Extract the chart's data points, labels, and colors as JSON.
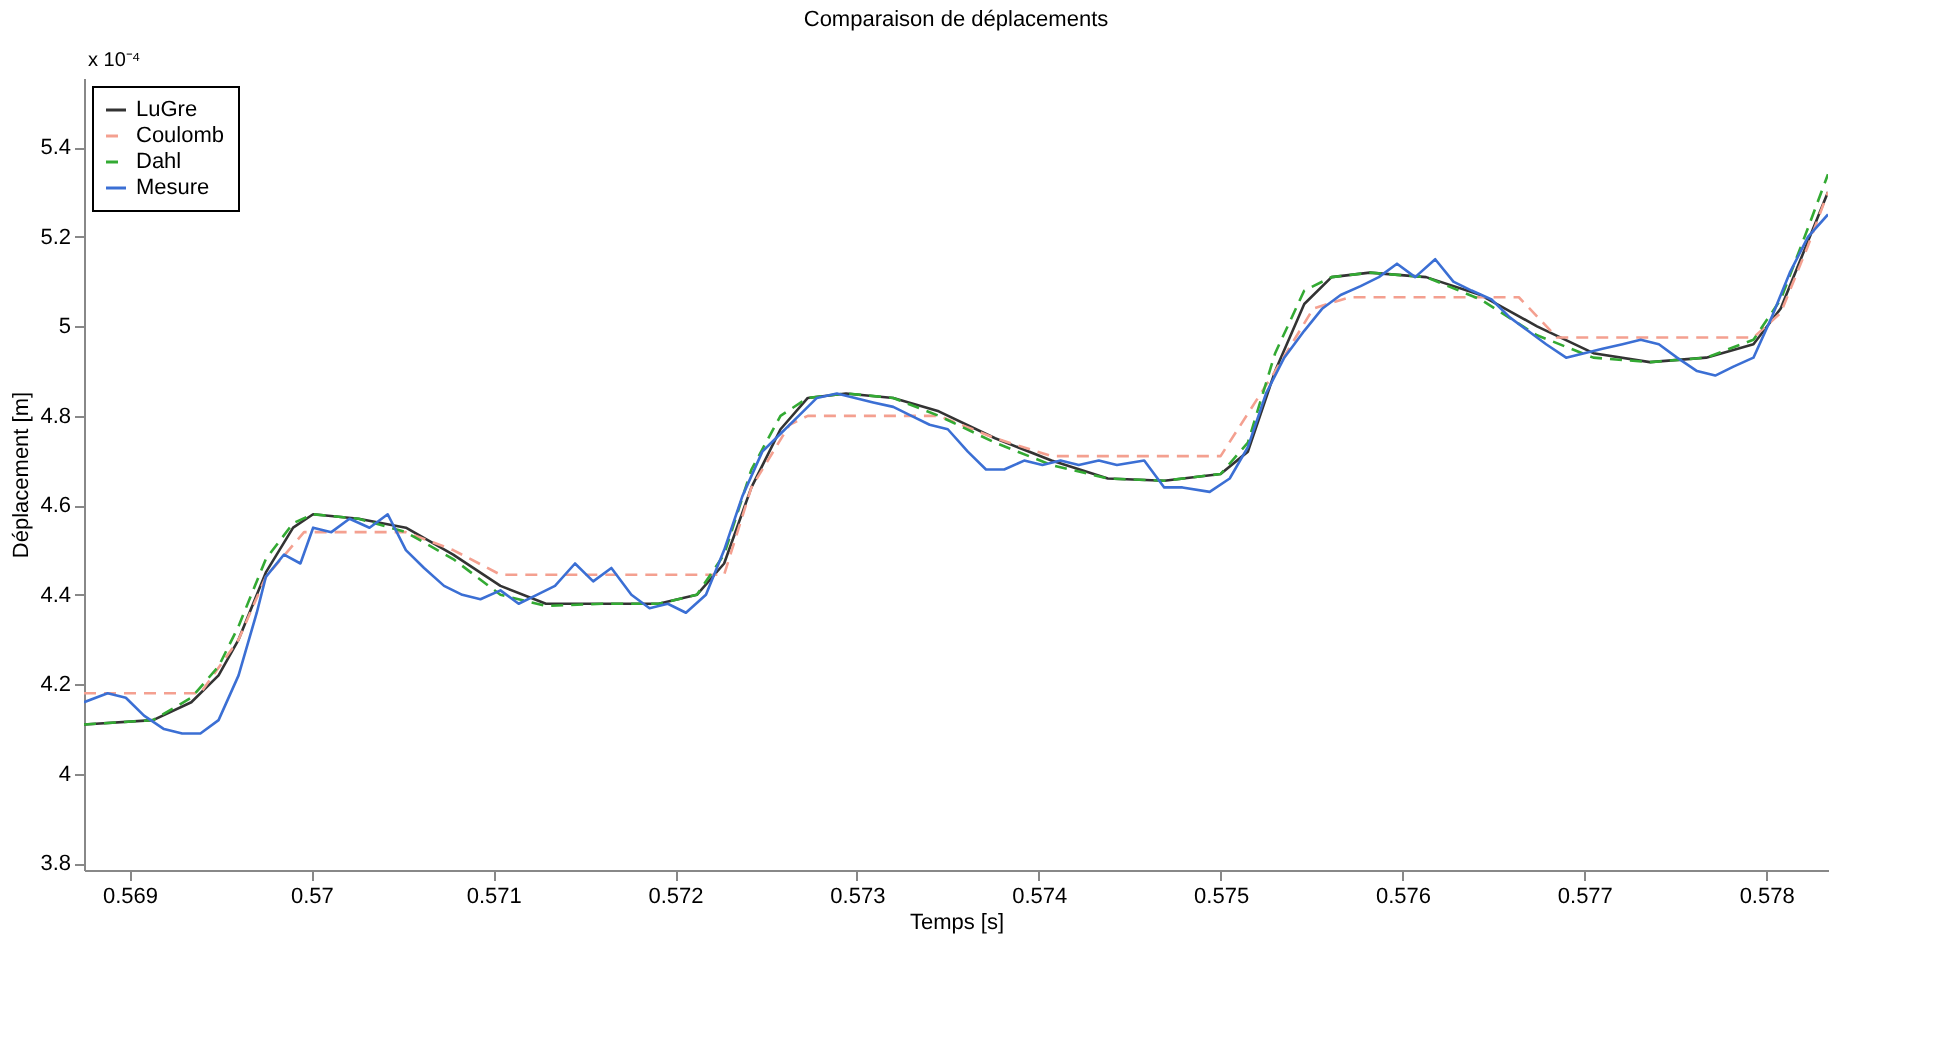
{
  "chart_data": {
    "type": "line",
    "title": "Comparaison de déplacements",
    "xlabel": "Temps [s]",
    "ylabel": "Déplacement [m]",
    "annotations": [
      "x 10⁻⁴"
    ],
    "xlim": [
      0.56875,
      0.57834
    ],
    "ylim": [
      3.785,
      5.555
    ],
    "xticks": [
      0.569,
      0.57,
      0.571,
      0.572,
      0.573,
      0.574,
      0.575,
      0.576,
      0.577,
      0.578
    ],
    "yticks": [
      3.8,
      4,
      4.2,
      4.4,
      4.6,
      4.8,
      5,
      5.2,
      5.4
    ],
    "grid": false,
    "legend": "top left",
    "marker": "none",
    "series": [
      {
        "name": "LuGre",
        "color": "#333333",
        "line_style": "solid",
        "x": [
          0.56875,
          0.56913,
          0.56934,
          0.56949,
          0.5696,
          0.56975,
          0.5699,
          0.57001,
          0.57026,
          0.57052,
          0.57078,
          0.57104,
          0.57129,
          0.5716,
          0.57191,
          0.57212,
          0.57227,
          0.57242,
          0.57258,
          0.57273,
          0.57294,
          0.5732,
          0.57345,
          0.57376,
          0.57407,
          0.57438,
          0.57469,
          0.575,
          0.57515,
          0.5753,
          0.57546,
          0.57561,
          0.57582,
          0.57613,
          0.57643,
          0.57674,
          0.57705,
          0.57736,
          0.57767,
          0.57793,
          0.57808,
          0.57823,
          0.57834
        ],
        "values": [
          4.11,
          4.12,
          4.16,
          4.22,
          4.3,
          4.45,
          4.55,
          4.58,
          4.57,
          4.55,
          4.49,
          4.42,
          4.38,
          4.38,
          4.38,
          4.4,
          4.47,
          4.64,
          4.77,
          4.84,
          4.85,
          4.84,
          4.81,
          4.75,
          4.7,
          4.66,
          4.655,
          4.67,
          4.72,
          4.9,
          5.05,
          5.11,
          5.12,
          5.11,
          5.07,
          5.0,
          4.94,
          4.92,
          4.93,
          4.96,
          5.04,
          5.19,
          5.3
        ]
      },
      {
        "name": "Coulomb",
        "color": "#f4a090",
        "line_style": "dashed",
        "x": [
          0.56875,
          0.56939,
          0.5696,
          0.56975,
          0.56996,
          0.57052,
          0.57078,
          0.57104,
          0.57227,
          0.57242,
          0.57263,
          0.57273,
          0.57345,
          0.57376,
          0.57407,
          0.575,
          0.5753,
          0.57551,
          0.57571,
          0.57664,
          0.57685,
          0.57793,
          0.57808,
          0.57823,
          0.57834
        ],
        "values": [
          4.18,
          4.18,
          4.3,
          4.44,
          4.54,
          4.54,
          4.5,
          4.445,
          4.445,
          4.64,
          4.78,
          4.8,
          4.8,
          4.75,
          4.71,
          4.71,
          4.9,
          5.04,
          5.065,
          5.065,
          4.975,
          4.975,
          5.03,
          5.18,
          5.3
        ]
      },
      {
        "name": "Dahl",
        "color": "#33aa33",
        "line_style": "dashed",
        "x": [
          0.56875,
          0.56913,
          0.56934,
          0.56949,
          0.5696,
          0.56975,
          0.5699,
          0.57001,
          0.57026,
          0.57052,
          0.57078,
          0.57104,
          0.57129,
          0.5716,
          0.57191,
          0.57212,
          0.57227,
          0.57242,
          0.57258,
          0.57273,
          0.57294,
          0.5732,
          0.57345,
          0.57376,
          0.57407,
          0.57438,
          0.57469,
          0.575,
          0.57515,
          0.5753,
          0.57546,
          0.57561,
          0.57582,
          0.57613,
          0.57643,
          0.57674,
          0.57705,
          0.57736,
          0.57767,
          0.57793,
          0.57808,
          0.57823,
          0.57834
        ],
        "values": [
          4.11,
          4.12,
          4.17,
          4.24,
          4.33,
          4.48,
          4.56,
          4.58,
          4.57,
          4.54,
          4.48,
          4.4,
          4.375,
          4.38,
          4.38,
          4.4,
          4.49,
          4.68,
          4.8,
          4.84,
          4.85,
          4.84,
          4.8,
          4.74,
          4.69,
          4.66,
          4.655,
          4.67,
          4.74,
          4.94,
          5.08,
          5.11,
          5.12,
          5.11,
          5.06,
          4.98,
          4.93,
          4.92,
          4.93,
          4.97,
          5.06,
          5.22,
          5.34
        ]
      },
      {
        "name": "Mesure",
        "color": "#3b6fd4",
        "line_style": "solid",
        "x": [
          0.56875,
          0.56888,
          0.56898,
          0.56908,
          0.56919,
          0.56929,
          0.56939,
          0.56949,
          0.5696,
          0.5697,
          0.56975,
          0.56985,
          0.56994,
          0.57001,
          0.57011,
          0.57021,
          0.57032,
          0.57042,
          0.57052,
          0.57062,
          0.57073,
          0.57083,
          0.57093,
          0.57104,
          0.57114,
          0.57124,
          0.57134,
          0.57145,
          0.57155,
          0.57165,
          0.57176,
          0.57186,
          0.57196,
          0.57206,
          0.57217,
          0.57227,
          0.57237,
          0.57248,
          0.57258,
          0.57268,
          0.57278,
          0.57289,
          0.57299,
          0.57309,
          0.5732,
          0.5733,
          0.5734,
          0.5735,
          0.57361,
          0.57371,
          0.57381,
          0.57392,
          0.57402,
          0.57412,
          0.57422,
          0.57433,
          0.57443,
          0.57458,
          0.57469,
          0.57479,
          0.57494,
          0.57505,
          0.57515,
          0.57525,
          0.57535,
          0.57546,
          0.57556,
          0.57566,
          0.57577,
          0.57587,
          0.57597,
          0.57607,
          0.57618,
          0.57628,
          0.57638,
          0.57649,
          0.57659,
          0.57669,
          0.57679,
          0.5769,
          0.577,
          0.5771,
          0.57721,
          0.57731,
          0.57741,
          0.57751,
          0.57762,
          0.57772,
          0.57782,
          0.57793,
          0.57803,
          0.57813,
          0.57823,
          0.57834
        ],
        "values": [
          4.16,
          4.18,
          4.17,
          4.13,
          4.1,
          4.09,
          4.09,
          4.12,
          4.22,
          4.36,
          4.44,
          4.49,
          4.47,
          4.55,
          4.54,
          4.57,
          4.55,
          4.58,
          4.5,
          4.46,
          4.42,
          4.4,
          4.39,
          4.41,
          4.38,
          4.4,
          4.42,
          4.47,
          4.43,
          4.46,
          4.4,
          4.37,
          4.38,
          4.36,
          4.4,
          4.5,
          4.62,
          4.72,
          4.76,
          4.8,
          4.84,
          4.85,
          4.84,
          4.83,
          4.82,
          4.8,
          4.78,
          4.77,
          4.72,
          4.68,
          4.68,
          4.7,
          4.69,
          4.7,
          4.69,
          4.7,
          4.69,
          4.7,
          4.64,
          4.64,
          4.63,
          4.66,
          4.73,
          4.85,
          4.93,
          4.99,
          5.04,
          5.07,
          5.09,
          5.11,
          5.14,
          5.11,
          5.15,
          5.1,
          5.08,
          5.06,
          5.02,
          4.99,
          4.96,
          4.93,
          4.94,
          4.95,
          4.96,
          4.97,
          4.96,
          4.93,
          4.9,
          4.89,
          4.91,
          4.93,
          5.02,
          5.12,
          5.2,
          5.25
        ]
      }
    ]
  }
}
